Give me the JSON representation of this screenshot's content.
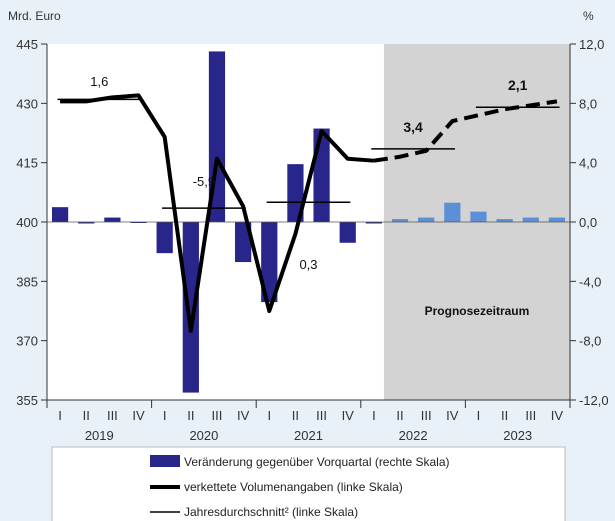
{
  "chart_data": {
    "type": "bar+line",
    "left_axis": {
      "unit": "Mrd. Euro",
      "ticks": [
        445,
        430,
        415,
        400,
        385,
        370,
        355
      ],
      "range": [
        355,
        445
      ]
    },
    "right_axis": {
      "unit": "%",
      "ticks": [
        "12,0",
        "8,0",
        "4,0",
        "0,0",
        "-4,0",
        "-8,0",
        "-12,0"
      ],
      "range": [
        -12,
        12
      ]
    },
    "quarters": [
      "I",
      "II",
      "III",
      "IV",
      "I",
      "II",
      "III",
      "IV",
      "I",
      "II",
      "III",
      "IV",
      "I",
      "II",
      "III",
      "IV",
      "I",
      "II",
      "III",
      "IV"
    ],
    "years": [
      "2019",
      "2020",
      "2021",
      "2022",
      "2023"
    ],
    "forecast_label": "Prognosezeitraum",
    "forecast_start_index": 13,
    "series": [
      {
        "name": "Veränderung gegenüber Vorquartal (rechte Skala)",
        "type": "bar",
        "axis": "right",
        "values": [
          1.0,
          -0.1,
          0.3,
          0.0,
          -2.1,
          -11.5,
          11.5,
          -2.7,
          -5.4,
          3.9,
          6.3,
          -1.4,
          -0.1,
          0.2,
          0.3,
          1.3,
          0.7,
          0.2,
          0.3,
          0.3
        ]
      },
      {
        "name": "verkettete Volumenangaben (linke Skala)",
        "type": "line",
        "axis": "left",
        "values": [
          430.5,
          430.5,
          431.5,
          432.0,
          421.5,
          372.5,
          416.0,
          404.0,
          377.5,
          397.0,
          423.0,
          416.0,
          415.5,
          416.5,
          418.0,
          425.5,
          427.0,
          428.5,
          429.5,
          430.5
        ]
      },
      {
        "name": "Jahresdurchschnitt² (linke Skala)",
        "type": "annual-average",
        "axis": "left",
        "values": [
          431.0,
          403.5,
          405.0,
          418.5,
          429.0
        ]
      }
    ],
    "annotations": [
      "1,6",
      "-5,9",
      "0,3",
      "3,4",
      "2,1"
    ]
  }
}
